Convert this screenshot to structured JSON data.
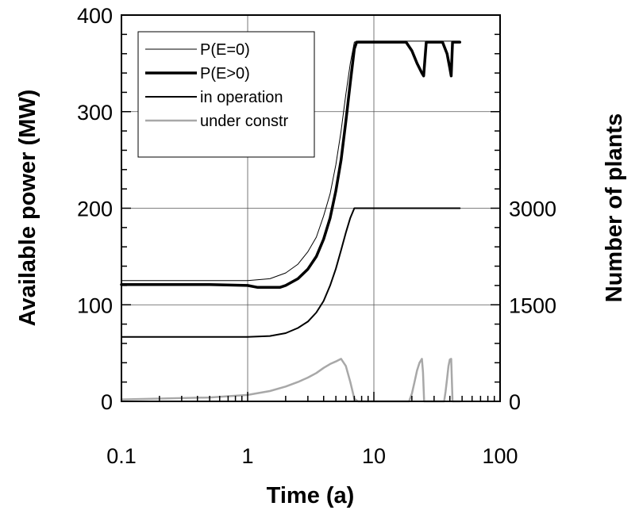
{
  "chart_data": {
    "type": "line",
    "xscale": "log",
    "xlim": [
      0.1,
      100
    ],
    "ylim": [
      0,
      400
    ],
    "y2lim": [
      0,
      6000
    ],
    "xlabel": "Time (a)",
    "ylabel": "Available power (MW)",
    "y2label": "Number of plants",
    "x_ticks": [
      "0.1",
      "1",
      "10",
      "100"
    ],
    "y_ticks": [
      "0",
      "100",
      "200",
      "300",
      "400"
    ],
    "y2_ticks": [
      "0",
      "1500",
      "3000"
    ],
    "grid": true,
    "legend_position": "top-left",
    "series": [
      {
        "name": "P(E=0)",
        "axis": "left",
        "color": "#000000",
        "style": "thin",
        "x": [
          0.1,
          0.5,
          1.0,
          1.5,
          2.0,
          2.5,
          3.0,
          3.5,
          4.0,
          4.5,
          5.0,
          5.5,
          6.0,
          6.5,
          7.0,
          7.5,
          10,
          20,
          30,
          40,
          48
        ],
        "y": [
          125,
          125,
          125,
          127,
          133,
          142,
          155,
          170,
          192,
          215,
          245,
          280,
          318,
          350,
          372,
          373,
          373,
          373,
          373,
          373,
          373
        ]
      },
      {
        "name": "P(E>0)",
        "axis": "left",
        "color": "#000000",
        "style": "thick",
        "x": [
          0.1,
          0.5,
          1.0,
          1.2,
          1.5,
          1.8,
          2.0,
          2.5,
          3.0,
          3.5,
          4.0,
          4.5,
          5.0,
          5.5,
          6.0,
          6.5,
          7.0,
          7.3,
          10,
          15,
          18,
          20,
          22,
          24,
          24.8,
          26,
          35,
          38,
          40,
          41,
          42,
          44,
          48
        ],
        "y": [
          121,
          121,
          120,
          118,
          118,
          118,
          120,
          127,
          137,
          150,
          168,
          190,
          218,
          250,
          290,
          330,
          365,
          372,
          372,
          372,
          372,
          363,
          350,
          340,
          337,
          372,
          372,
          360,
          345,
          337,
          372,
          372,
          372
        ]
      },
      {
        "name": "in operation",
        "axis": "right",
        "color": "#000000",
        "style": "medium",
        "x": [
          0.1,
          0.5,
          1.0,
          1.5,
          2.0,
          2.5,
          3.0,
          3.5,
          4.0,
          4.5,
          5.0,
          5.5,
          6.0,
          6.5,
          7.0,
          7.5,
          10,
          20,
          30,
          40,
          48
        ],
        "y": [
          1000,
          1000,
          1000,
          1015,
          1060,
          1140,
          1240,
          1380,
          1560,
          1800,
          2060,
          2350,
          2620,
          2850,
          3000,
          3000,
          3000,
          3000,
          3000,
          3000,
          3000
        ]
      },
      {
        "name": "under constr",
        "axis": "right",
        "color": "#a8a8a8",
        "style": "gray",
        "x": [
          0.1,
          0.5,
          1.0,
          1.5,
          2.0,
          2.5,
          3.0,
          3.5,
          4.0,
          4.5,
          5.0,
          5.5,
          6.0,
          6.5,
          7.0,
          7.5,
          19,
          20,
          21,
          22,
          23,
          24,
          24.5,
          25,
          36,
          37,
          38,
          39,
          40,
          41,
          42,
          48
        ],
        "y": [
          30,
          60,
          100,
          160,
          230,
          300,
          370,
          440,
          520,
          580,
          620,
          660,
          550,
          300,
          40,
          0,
          0,
          120,
          300,
          480,
          600,
          660,
          450,
          0,
          0,
          150,
          350,
          550,
          650,
          660,
          0,
          0
        ]
      }
    ]
  }
}
